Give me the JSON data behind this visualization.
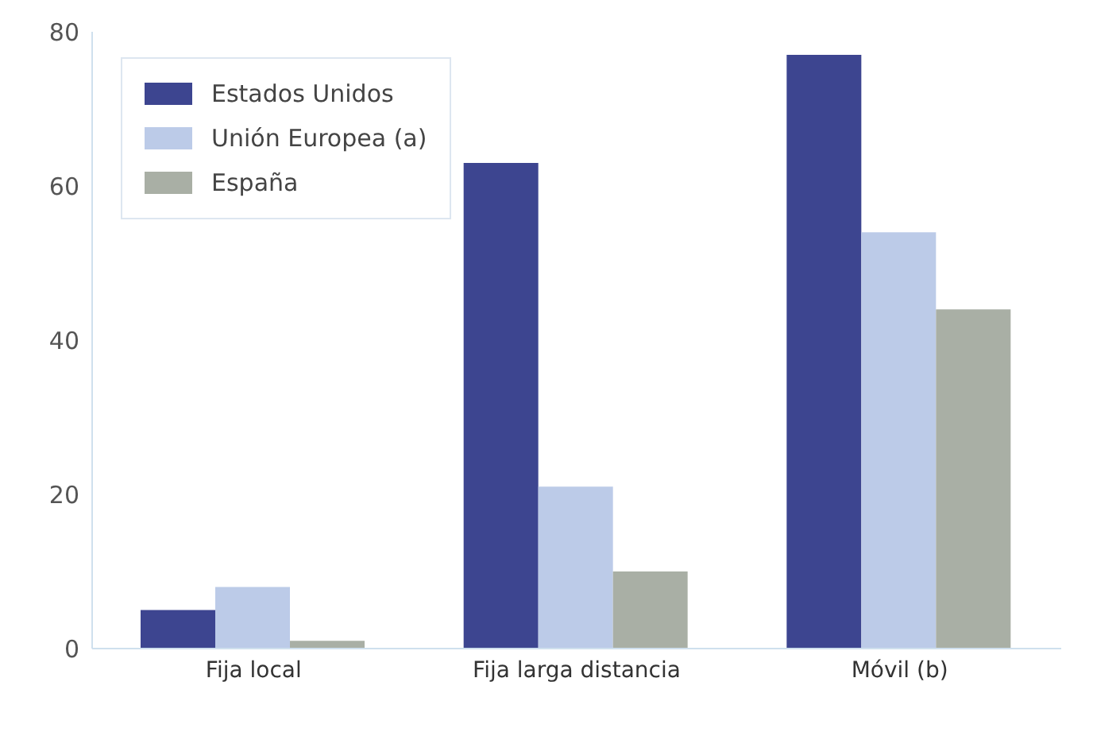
{
  "chart_data": {
    "type": "bar",
    "categories": [
      "Fija local",
      "Fija larga distancia",
      "Móvil (b)"
    ],
    "series": [
      {
        "name": "Estados Unidos",
        "color": "#3d4590",
        "values": [
          5,
          63,
          77
        ]
      },
      {
        "name": "Unión Europea (a)",
        "color": "#bccbe8",
        "values": [
          8,
          21,
          54
        ]
      },
      {
        "name": "España",
        "color": "#a9afa5",
        "values": [
          1,
          10,
          44
        ]
      }
    ],
    "ylim": [
      0,
      80
    ],
    "yticks": [
      0,
      20,
      40,
      60,
      80
    ],
    "grid": false,
    "legend": "top left"
  }
}
